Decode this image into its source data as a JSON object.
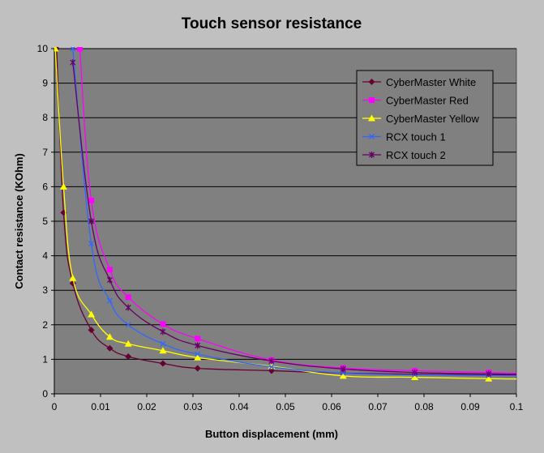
{
  "chart_data": {
    "type": "line",
    "title": "Touch sensor resistance",
    "xlabel": "Button displacement (mm)",
    "ylabel": "Contact resistance (KOhm)",
    "xlim": [
      0,
      0.1
    ],
    "ylim": [
      0,
      10
    ],
    "x_ticks": [
      "0",
      "0.01",
      "0.02",
      "0.03",
      "0.04",
      "0.05",
      "0.06",
      "0.07",
      "0.08",
      "0.09",
      "0.1"
    ],
    "y_ticks": [
      "0",
      "1",
      "2",
      "3",
      "4",
      "5",
      "6",
      "7",
      "8",
      "9",
      "10"
    ],
    "grid": "horizontal",
    "legend_position": "top-right",
    "plot_background": "#808080",
    "series": [
      {
        "name": "CyberMaster White",
        "color": "#660033",
        "marker": "diamond",
        "points": [
          [
            0.0005,
            10
          ],
          [
            0.002,
            5.25
          ],
          [
            0.004,
            3.2
          ],
          [
            0.008,
            1.85
          ],
          [
            0.012,
            1.32
          ],
          [
            0.016,
            1.08
          ],
          [
            0.0235,
            0.88
          ],
          [
            0.031,
            0.74
          ],
          [
            0.047,
            0.67
          ],
          [
            0.0625,
            0.6
          ],
          [
            0.078,
            0.57
          ],
          [
            0.094,
            0.55
          ],
          [
            0.1,
            0.55
          ]
        ]
      },
      {
        "name": "CyberMaster Red",
        "color": "#ff00ff",
        "marker": "square",
        "points": [
          [
            0.0055,
            10
          ],
          [
            0.008,
            5.6
          ],
          [
            0.012,
            3.6
          ],
          [
            0.016,
            2.8
          ],
          [
            0.0235,
            2.02
          ],
          [
            0.031,
            1.6
          ],
          [
            0.047,
            0.98
          ],
          [
            0.0625,
            0.75
          ],
          [
            0.078,
            0.67
          ],
          [
            0.094,
            0.62
          ],
          [
            0.1,
            0.6
          ]
        ]
      },
      {
        "name": "CyberMaster Yellow",
        "color": "#ffff00",
        "marker": "triangle",
        "points": [
          [
            0.0002,
            10
          ],
          [
            0.002,
            6
          ],
          [
            0.004,
            3.35
          ],
          [
            0.008,
            2.3
          ],
          [
            0.012,
            1.65
          ],
          [
            0.016,
            1.45
          ],
          [
            0.0235,
            1.25
          ],
          [
            0.031,
            1.05
          ],
          [
            0.047,
            0.8
          ],
          [
            0.0625,
            0.52
          ],
          [
            0.078,
            0.48
          ],
          [
            0.094,
            0.44
          ],
          [
            0.1,
            0.43
          ]
        ]
      },
      {
        "name": "RCX touch 1",
        "color": "#3366ff",
        "marker": "x",
        "points": [
          [
            0.004,
            10
          ],
          [
            0.008,
            4.35
          ],
          [
            0.012,
            2.7
          ],
          [
            0.016,
            2.0
          ],
          [
            0.0235,
            1.45
          ],
          [
            0.031,
            1.15
          ],
          [
            0.047,
            0.78
          ],
          [
            0.0625,
            0.6
          ],
          [
            0.078,
            0.55
          ],
          [
            0.094,
            0.53
          ],
          [
            0.1,
            0.52
          ]
        ]
      },
      {
        "name": "RCX touch 2",
        "color": "#660066",
        "marker": "star",
        "points": [
          [
            0.004,
            9.6
          ],
          [
            0.008,
            5.0
          ],
          [
            0.012,
            3.3
          ],
          [
            0.016,
            2.5
          ],
          [
            0.0235,
            1.8
          ],
          [
            0.031,
            1.4
          ],
          [
            0.047,
            0.95
          ],
          [
            0.0625,
            0.72
          ],
          [
            0.078,
            0.62
          ],
          [
            0.094,
            0.58
          ],
          [
            0.1,
            0.57
          ]
        ]
      }
    ]
  }
}
